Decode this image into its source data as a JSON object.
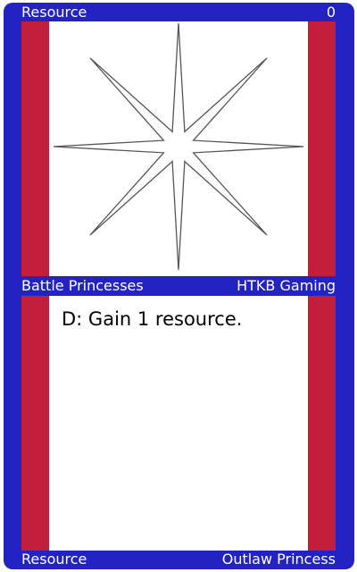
{
  "card": {
    "name": "Resource",
    "cost": "0",
    "set": "Battle Princesses",
    "publisher": "HTKB Gaming",
    "text": "D: Gain 1 resource.",
    "type": "Resource",
    "subtitle": "Outlaw Princess"
  },
  "art": {
    "icon": "eight-pointed-star-icon"
  },
  "colors": {
    "border": "#2323c2",
    "stripe": "#c21f3d",
    "panel": "#ffffff",
    "label_text": "#ffffff",
    "star_stroke": "#555555"
  }
}
